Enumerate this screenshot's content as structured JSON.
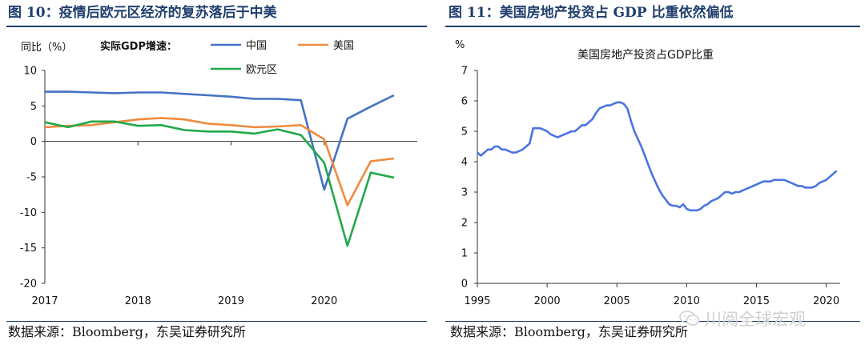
{
  "left_panel": {
    "title": "图 10：疫情后欧元区经济的复苏落后于中美",
    "source": "数据来源：Bloomberg，东吴证券研究所"
  },
  "right_panel": {
    "title": "图 11：美国房地产投资占 GDP 比重依然偏低",
    "source": "数据来源：Bloomberg，东吴证券研究所"
  },
  "watermark": {
    "text": "川阅全球宏观",
    "icon": "wechat-icon"
  },
  "chart_data": [
    {
      "type": "line",
      "title": "",
      "ylabel": "同比（%）",
      "legend_title": "实际GDP增速：",
      "xlim": [
        2017,
        2021
      ],
      "ylim": [
        -20,
        10
      ],
      "yticks": [
        "10",
        "5",
        "0",
        "-5",
        "-10",
        "-15",
        "-20"
      ],
      "xticks": [
        "2017",
        "2018",
        "2019",
        "2020"
      ],
      "colors": {
        "中国": "#4472c4",
        "美国": "#ed8b3f",
        "欧元区": "#22a84a"
      },
      "series": [
        {
          "name": "中国",
          "x": [
            2017.0,
            2017.25,
            2017.5,
            2017.75,
            2018.0,
            2018.25,
            2018.5,
            2018.75,
            2019.0,
            2019.25,
            2019.5,
            2019.75,
            2020.0,
            2020.25,
            2020.5,
            2020.75
          ],
          "values": [
            7.0,
            7.0,
            6.9,
            6.8,
            6.9,
            6.9,
            6.7,
            6.5,
            6.3,
            6.0,
            6.0,
            5.8,
            -6.8,
            3.2,
            4.9,
            6.5
          ]
        },
        {
          "name": "美国",
          "x": [
            2017.0,
            2017.25,
            2017.5,
            2017.75,
            2018.0,
            2018.25,
            2018.5,
            2018.75,
            2019.0,
            2019.25,
            2019.5,
            2019.75,
            2020.0,
            2020.25,
            2020.5,
            2020.75
          ],
          "values": [
            2.0,
            2.2,
            2.3,
            2.7,
            3.1,
            3.3,
            3.1,
            2.5,
            2.3,
            2.0,
            2.1,
            2.3,
            0.3,
            -9.0,
            -2.8,
            -2.4
          ]
        },
        {
          "name": "欧元区",
          "x": [
            2017.0,
            2017.25,
            2017.5,
            2017.75,
            2018.0,
            2018.25,
            2018.5,
            2018.75,
            2019.0,
            2019.25,
            2019.5,
            2019.75,
            2020.0,
            2020.25,
            2020.5,
            2020.75
          ],
          "values": [
            2.7,
            2.0,
            2.8,
            2.8,
            2.2,
            2.3,
            1.6,
            1.4,
            1.4,
            1.1,
            1.7,
            0.9,
            -3.0,
            -14.7,
            -4.4,
            -5.1
          ]
        }
      ]
    },
    {
      "type": "line",
      "title": "美国房地产投资占GDP比重",
      "ylabel": "%",
      "xlim": [
        1995,
        2021
      ],
      "ylim": [
        0,
        7
      ],
      "yticks": [
        "7",
        "6",
        "5",
        "4",
        "3",
        "2",
        "1",
        "0"
      ],
      "xticks": [
        "1995",
        "2000",
        "2005",
        "2010",
        "2015",
        "2020"
      ],
      "colors": {
        "line": "#4a74e0"
      },
      "series": [
        {
          "name": "美国房地产投资占GDP比重",
          "x": [
            1995.0,
            1995.25,
            1995.5,
            1995.75,
            1996.0,
            1996.25,
            1996.5,
            1996.75,
            1997.0,
            1997.25,
            1997.5,
            1997.75,
            1998.0,
            1998.25,
            1998.5,
            1998.75,
            1999.0,
            1999.25,
            1999.5,
            1999.75,
            2000.0,
            2000.25,
            2000.5,
            2000.75,
            2001.0,
            2001.25,
            2001.5,
            2001.75,
            2002.0,
            2002.25,
            2002.5,
            2002.75,
            2003.0,
            2003.25,
            2003.5,
            2003.75,
            2004.0,
            2004.25,
            2004.5,
            2004.75,
            2005.0,
            2005.25,
            2005.5,
            2005.75,
            2006.0,
            2006.25,
            2006.5,
            2006.75,
            2007.0,
            2007.25,
            2007.5,
            2007.75,
            2008.0,
            2008.25,
            2008.5,
            2008.75,
            2009.0,
            2009.25,
            2009.5,
            2009.75,
            2010.0,
            2010.25,
            2010.5,
            2010.75,
            2011.0,
            2011.25,
            2011.5,
            2011.75,
            2012.0,
            2012.25,
            2012.5,
            2012.75,
            2013.0,
            2013.25,
            2013.5,
            2013.75,
            2014.0,
            2014.25,
            2014.5,
            2014.75,
            2015.0,
            2015.25,
            2015.5,
            2015.75,
            2016.0,
            2016.25,
            2016.5,
            2016.75,
            2017.0,
            2017.25,
            2017.5,
            2017.75,
            2018.0,
            2018.25,
            2018.5,
            2018.75,
            2019.0,
            2019.25,
            2019.5,
            2019.75,
            2020.0,
            2020.25,
            2020.5,
            2020.75
          ],
          "values": [
            4.3,
            4.2,
            4.3,
            4.4,
            4.4,
            4.5,
            4.5,
            4.4,
            4.4,
            4.35,
            4.3,
            4.3,
            4.35,
            4.4,
            4.5,
            4.6,
            5.1,
            5.1,
            5.1,
            5.05,
            5.0,
            4.9,
            4.85,
            4.8,
            4.85,
            4.9,
            4.95,
            5.0,
            5.0,
            5.1,
            5.2,
            5.2,
            5.3,
            5.4,
            5.6,
            5.75,
            5.8,
            5.85,
            5.85,
            5.9,
            5.95,
            5.95,
            5.9,
            5.75,
            5.35,
            5.0,
            4.75,
            4.5,
            4.2,
            3.9,
            3.6,
            3.35,
            3.1,
            2.9,
            2.75,
            2.6,
            2.55,
            2.55,
            2.5,
            2.6,
            2.45,
            2.4,
            2.4,
            2.4,
            2.45,
            2.55,
            2.6,
            2.7,
            2.75,
            2.8,
            2.9,
            3.0,
            3.0,
            2.95,
            3.0,
            3.0,
            3.05,
            3.1,
            3.15,
            3.2,
            3.25,
            3.3,
            3.35,
            3.35,
            3.35,
            3.4,
            3.4,
            3.4,
            3.4,
            3.35,
            3.3,
            3.25,
            3.2,
            3.2,
            3.15,
            3.15,
            3.15,
            3.2,
            3.3,
            3.35,
            3.4,
            3.5,
            3.6,
            3.7
          ]
        }
      ]
    }
  ]
}
